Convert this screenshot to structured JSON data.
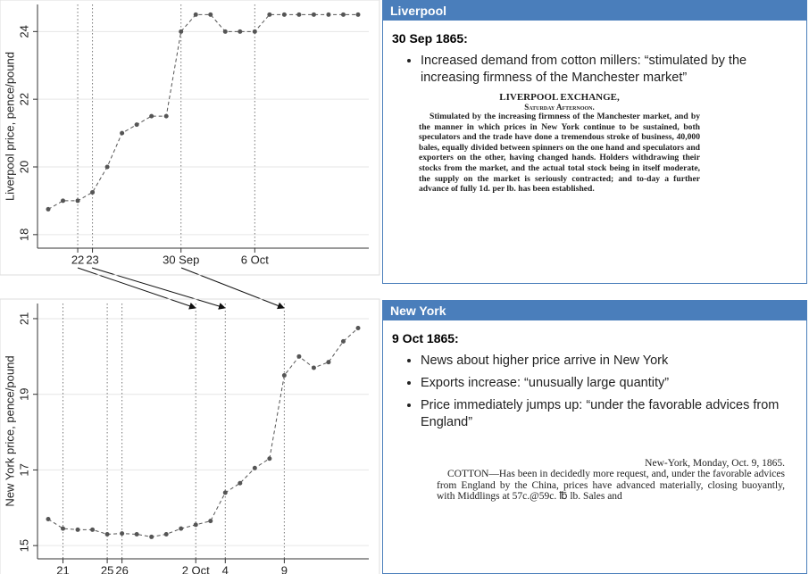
{
  "chart_data": [
    {
      "type": "line",
      "y_label": "Liverpool price, pence/pound",
      "categories": [
        null,
        null,
        "22",
        "23",
        null,
        null,
        null,
        null,
        null,
        "30 Sep",
        null,
        null,
        null,
        null,
        "6 Oct",
        null,
        null,
        null,
        null,
        null,
        null,
        null
      ],
      "values": [
        18.75,
        19.0,
        19.0,
        19.25,
        20.0,
        21.0,
        21.25,
        21.5,
        21.5,
        24.0,
        24.5,
        24.5,
        24.0,
        24.0,
        24.0,
        24.5,
        24.5,
        24.5,
        24.5,
        24.5,
        24.5,
        24.5
      ],
      "ylim": [
        17.6,
        24.8
      ],
      "yticks": [
        18,
        20,
        22,
        24
      ],
      "grid": true,
      "color": "#555555",
      "line_style": "dashed",
      "category_lines": true
    },
    {
      "type": "line",
      "y_label": "New York price, pence/pound",
      "categories": [
        null,
        "21",
        null,
        null,
        "25",
        "26",
        null,
        null,
        null,
        null,
        "2 Oct",
        null,
        "4",
        null,
        null,
        null,
        "9",
        null,
        null,
        null,
        null,
        null
      ],
      "values": [
        15.7,
        15.45,
        15.42,
        15.42,
        15.3,
        15.32,
        15.3,
        15.23,
        15.3,
        15.45,
        15.55,
        15.65,
        16.4,
        16.65,
        17.05,
        17.3,
        19.5,
        20.0,
        19.7,
        19.85,
        20.4,
        20.75
      ],
      "ylim": [
        14.65,
        21.4
      ],
      "yticks": [
        15,
        17,
        19,
        21
      ],
      "grid": true,
      "color": "#555555",
      "line_style": "dashed",
      "category_lines": true
    }
  ],
  "panels": [
    {
      "title": "Liverpool",
      "date": "30 Sep 1865:",
      "bullets": [
        "Increased demand from cotton millers: “stimulated by the increasing firmness of the Manchester market”"
      ],
      "clipping": {
        "heading": "LIVERPOOL EXCHANGE,",
        "subheading": "Saturday Afternoon.",
        "body": "Stimulated by the increasing firmness of the Manchester market, and by the manner in which prices in New York continue to be sustained, both speculators and the trade have done a tremendous stroke of business, 40,000 bales, equally divided between spinners on the one hand and speculators and exporters on the other, having changed hands. Holders withdrawing their stocks from the market, and the actual total stock being in itself moderate, the supply on the market is seriously contracted; and to-day a further advance of fully 1d. per lb. has been established."
      }
    },
    {
      "title": "New York",
      "date": "9 Oct 1865:",
      "bullets": [
        "News about higher price arrive in New York",
        "Exports increase: “unusually large quantity”",
        "Price immediately jumps up: “under the favorable advices from England”"
      ],
      "clipping": {
        "heading": "New-York, Monday, Oct. 9, 1865.",
        "body": "COTTON—Has been in decidedly more request, and, under the favorable advices from England by the China, prices have advanced materially, closing buoyantly, with Middlings at 57c.@59c. ℔ lb. Sales and"
      }
    }
  ]
}
